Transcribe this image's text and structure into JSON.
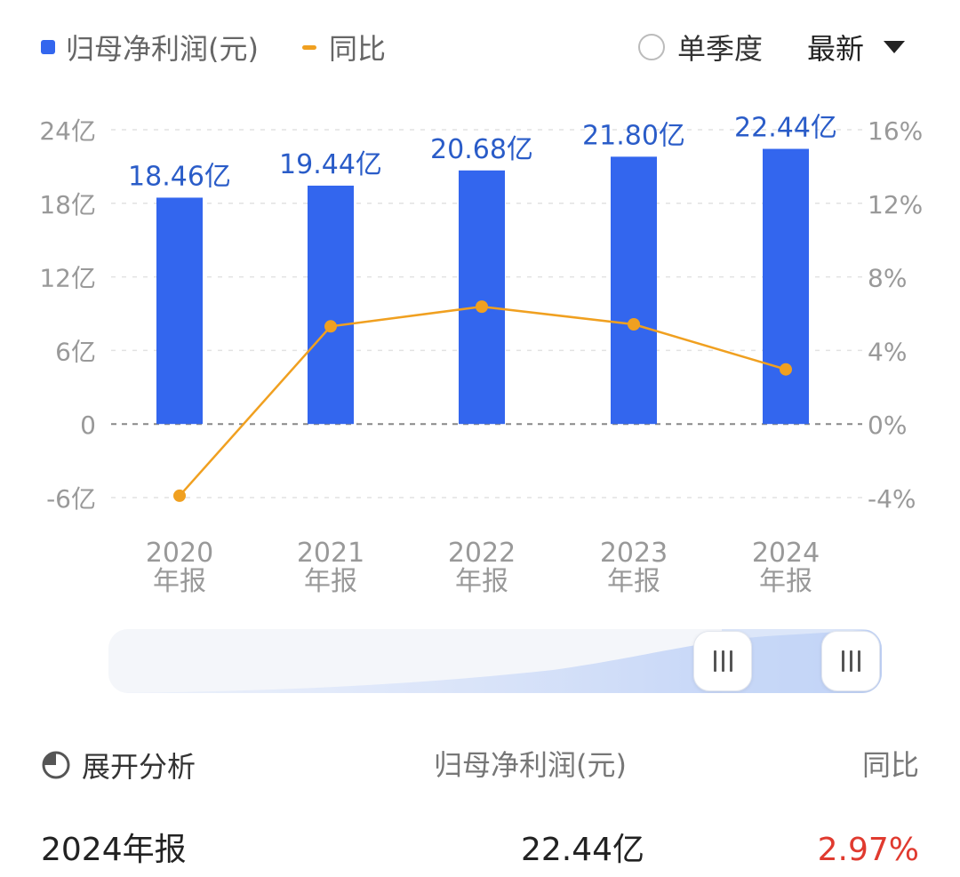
{
  "legend": {
    "bar_label": "归母净利润(元)",
    "line_label": "同比",
    "bar_color": "#3366ee",
    "line_color": "#f0a020"
  },
  "controls": {
    "quarter_label": "单季度",
    "latest_label": "最新"
  },
  "chart_data": {
    "type": "bar",
    "categories": [
      "2020\n年报",
      "2021\n年报",
      "2022\n年报",
      "2023\n年报",
      "2024\n年报"
    ],
    "series": [
      {
        "name": "归母净利润(元)",
        "type": "bar",
        "values": [
          18.46,
          19.44,
          20.68,
          21.8,
          22.44
        ],
        "data_labels": [
          "18.46亿",
          "19.44亿",
          "20.68亿",
          "21.80亿",
          "22.44亿"
        ],
        "axis": "left"
      },
      {
        "name": "同比",
        "type": "line",
        "values": [
          -3.9,
          5.31,
          6.38,
          5.42,
          2.97
        ],
        "axis": "right"
      }
    ],
    "y_left": {
      "ticks": [
        24,
        18,
        12,
        6,
        0,
        -6
      ],
      "tick_labels": [
        "24亿",
        "18亿",
        "12亿",
        "6亿",
        "0",
        "-6亿"
      ],
      "range": [
        -6,
        24
      ]
    },
    "y_right": {
      "ticks": [
        16,
        12,
        8,
        4,
        0,
        -4
      ],
      "tick_labels": [
        "16%",
        "12%",
        "8%",
        "4%",
        "0%",
        "-4%"
      ],
      "range": [
        -4,
        16
      ]
    },
    "grid": true,
    "legend_position": "top-left"
  },
  "slider": {
    "handle_left_label": "III",
    "handle_right_label": "III"
  },
  "table": {
    "expand_label": "展开分析",
    "col_metric": "归母净利润(元)",
    "col_yoy": "同比",
    "row": {
      "period": "2024年报",
      "value": "22.44亿",
      "yoy": "2.97%"
    }
  }
}
